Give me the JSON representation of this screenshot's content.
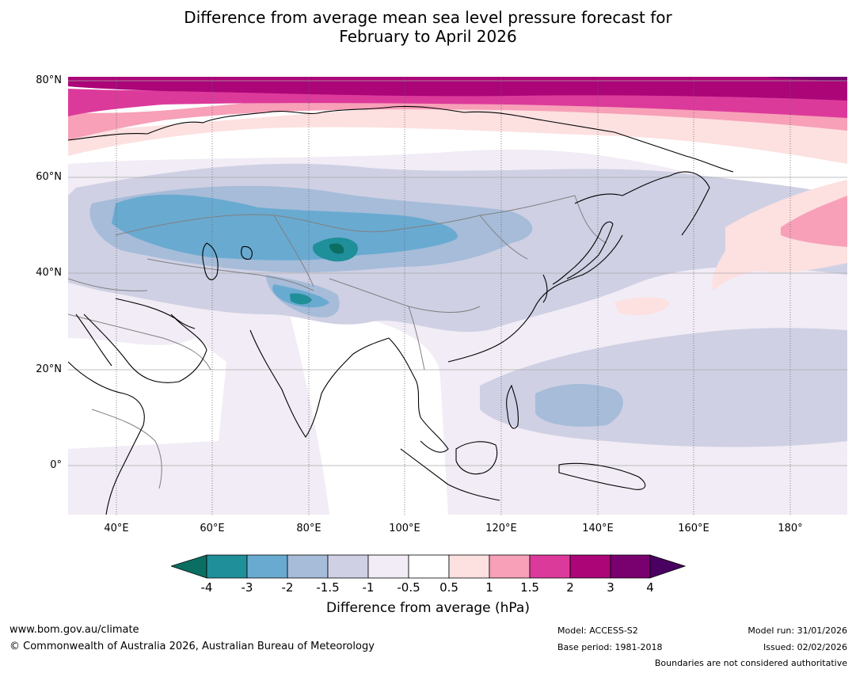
{
  "title": {
    "line1": "Difference from average mean sea level pressure forecast for",
    "line2": "February to April 2026"
  },
  "map": {
    "lat_labels": [
      "80°N",
      "60°N",
      "40°N",
      "20°N",
      "0°"
    ],
    "lon_labels": [
      "40°E",
      "60°E",
      "80°E",
      "100°E",
      "120°E",
      "140°E",
      "160°E",
      "180°"
    ],
    "colors": {
      "land_outline": "#000000",
      "borders": "#808080",
      "grid": "#999999"
    }
  },
  "legend": {
    "ticks": [
      "-4",
      "-3",
      "-2",
      "-1.5",
      "-1",
      "-0.5",
      "0.5",
      "1",
      "1.5",
      "2",
      "3",
      "4"
    ],
    "colors": [
      "#0b6e62",
      "#1f8f9a",
      "#69aad1",
      "#a6bcd9",
      "#cfd0e4",
      "#f1ecf5",
      "#ffffff",
      "#fde0e0",
      "#f7a0b8",
      "#dc3a9a",
      "#ab0578",
      "#79006f",
      "#4a0060"
    ],
    "label": "Difference from average (hPa)"
  },
  "footer": {
    "site": "www.bom.gov.au/climate",
    "copyright": "© Commonwealth of Australia 2026, Australian Bureau of Meteorology",
    "model": "Model: ACCESS-S2",
    "base_period": "Base period: 1981-2018",
    "model_run": "Model run: 31/01/2026",
    "issued": "Issued: 02/02/2026",
    "disclaimer": "Boundaries are not considered authoritative"
  }
}
